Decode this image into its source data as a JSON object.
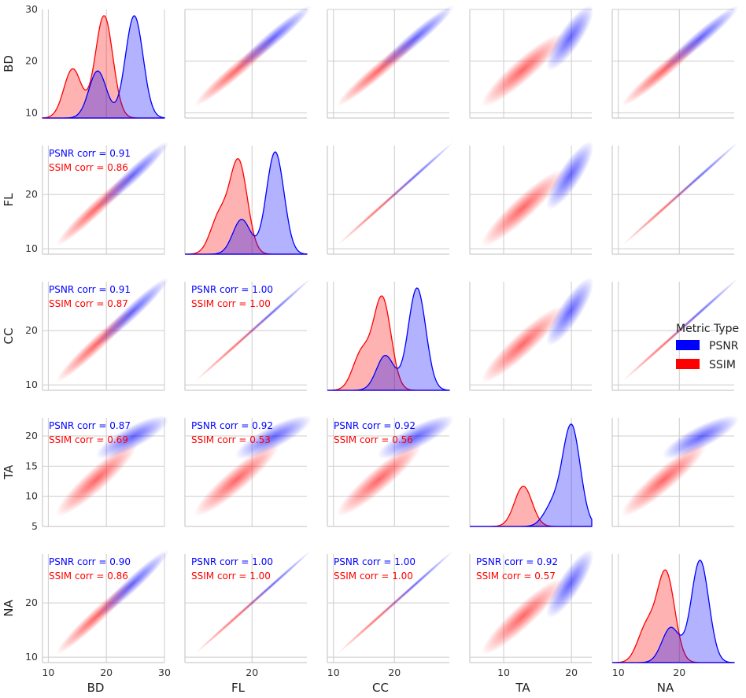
{
  "chart_data": {
    "type": "pairplot",
    "variables": [
      "BD",
      "FL",
      "CC",
      "TA",
      "NA"
    ],
    "hue": {
      "title": "Metric Type",
      "levels": [
        {
          "name": "PSNR",
          "color": "#0000ff"
        },
        {
          "name": "SSIM",
          "color": "#ff0000"
        }
      ]
    },
    "axes": {
      "BD": {
        "range": [
          9,
          30
        ],
        "ticks": [
          10,
          20,
          30
        ]
      },
      "FL": {
        "range": [
          9,
          29
        ],
        "ticks": [
          10,
          20
        ],
        "y_ticks": [
          10,
          20
        ],
        "x_ticks": [
          20
        ]
      },
      "CC": {
        "range": [
          9,
          29
        ],
        "ticks": [
          10,
          20
        ],
        "y_ticks": [
          10,
          20
        ],
        "x_ticks": [
          10,
          20
        ]
      },
      "TA": {
        "range": [
          5,
          23
        ],
        "ticks": [
          5,
          10,
          15,
          20
        ],
        "x_ticks": [
          10,
          20
        ]
      },
      "NA": {
        "range": [
          9,
          29
        ],
        "ticks": [
          10,
          20
        ]
      }
    },
    "diagonal_density_peaks": {
      "BD": {
        "PSNR": [
          {
            "x": 24.8,
            "h": 1.0
          },
          {
            "x": 18.5,
            "h": 0.46
          }
        ],
        "SSIM": [
          {
            "x": 19.6,
            "h": 1.0
          },
          {
            "x": 14.2,
            "h": 0.48
          }
        ]
      },
      "FL": {
        "PSNR": [
          {
            "x": 23.8,
            "h": 1.0
          },
          {
            "x": 18.3,
            "h": 0.34
          }
        ],
        "SSIM": [
          {
            "x": 17.8,
            "h": 0.9
          },
          {
            "x": 14.6,
            "h": 0.36
          }
        ]
      },
      "CC": {
        "PSNR": [
          {
            "x": 23.7,
            "h": 1.0
          },
          {
            "x": 18.5,
            "h": 0.34
          }
        ],
        "SSIM": [
          {
            "x": 18.0,
            "h": 0.9
          },
          {
            "x": 14.6,
            "h": 0.36
          }
        ]
      },
      "TA": {
        "PSNR": [
          {
            "x": 20.0,
            "h": 1.0
          },
          {
            "x": 17.2,
            "h": 0.2
          }
        ],
        "SSIM": [
          {
            "x": 12.9,
            "h": 0.4
          }
        ]
      },
      "NA": {
        "PSNR": [
          {
            "x": 23.4,
            "h": 0.88
          },
          {
            "x": 18.6,
            "h": 0.3
          }
        ],
        "SSIM": [
          {
            "x": 17.8,
            "h": 0.77
          },
          {
            "x": 14.6,
            "h": 0.3
          }
        ]
      }
    },
    "correlations": [
      {
        "row": "FL",
        "col": "BD",
        "PSNR": "PSNR corr = 0.91",
        "SSIM": "SSIM corr = 0.86"
      },
      {
        "row": "CC",
        "col": "BD",
        "PSNR": "PSNR corr = 0.91",
        "SSIM": "SSIM corr = 0.87"
      },
      {
        "row": "CC",
        "col": "FL",
        "PSNR": "PSNR corr = 1.00",
        "SSIM": "SSIM corr = 1.00"
      },
      {
        "row": "TA",
        "col": "BD",
        "PSNR": "PSNR corr = 0.87",
        "SSIM": "SSIM corr = 0.69"
      },
      {
        "row": "TA",
        "col": "FL",
        "PSNR": "PSNR corr = 0.92",
        "SSIM": "SSIM corr = 0.53"
      },
      {
        "row": "TA",
        "col": "CC",
        "PSNR": "PSNR corr = 0.92",
        "SSIM": "SSIM corr = 0.56"
      },
      {
        "row": "NA",
        "col": "BD",
        "PSNR": "PSNR corr = 0.90",
        "SSIM": "SSIM corr = 0.86"
      },
      {
        "row": "NA",
        "col": "FL",
        "PSNR": "PSNR corr = 1.00",
        "SSIM": "SSIM corr = 1.00"
      },
      {
        "row": "NA",
        "col": "CC",
        "PSNR": "PSNR corr = 1.00",
        "SSIM": "SSIM corr = 1.00"
      },
      {
        "row": "NA",
        "col": "TA",
        "PSNR": "PSNR corr = 0.92",
        "SSIM": "SSIM corr = 0.57"
      }
    ],
    "bivariate_clusters": {
      "BD": {
        "PSNR": {
          "mean": 24.5,
          "sd": 2.7
        },
        "SSIM": {
          "mean": 18.3,
          "sd": 3.0
        }
      },
      "FL": {
        "PSNR": {
          "mean": 23.5,
          "sd": 2.7
        },
        "SSIM": {
          "mean": 17.5,
          "sd": 3.0
        }
      },
      "CC": {
        "PSNR": {
          "mean": 23.5,
          "sd": 2.7
        },
        "SSIM": {
          "mean": 17.5,
          "sd": 3.0
        }
      },
      "TA": {
        "PSNR": {
          "mean": 19.8,
          "sd": 1.4
        },
        "SSIM": {
          "mean": 12.8,
          "sd": 2.6
        }
      },
      "NA": {
        "PSNR": {
          "mean": 23.5,
          "sd": 2.7
        },
        "SSIM": {
          "mean": 17.5,
          "sd": 3.0
        }
      }
    },
    "grid": true
  }
}
